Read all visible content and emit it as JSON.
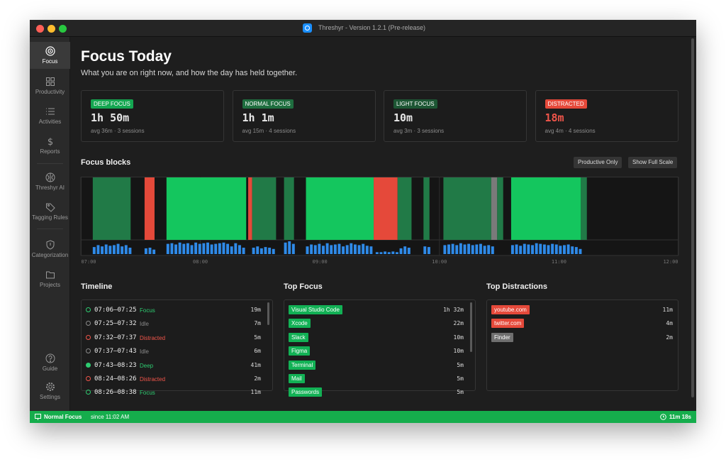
{
  "window": {
    "title": "Threshyr - Version 1.2.1 (Pre-release)"
  },
  "sidebar": {
    "items": [
      "Focus",
      "Productivity",
      "Activities",
      "Reports",
      "Threshyr AI",
      "Tagging Rules",
      "Categorization",
      "Projects"
    ],
    "footer": [
      "Guide",
      "Settings"
    ]
  },
  "header": {
    "title": "Focus Today",
    "subtitle": "What you are on right now, and how the day has held together."
  },
  "cards": [
    {
      "badge": "DEEP FOCUS",
      "value": "1h 50m",
      "detail": "avg 36m · 3 sessions",
      "color": "#14a651",
      "value_color": "#e8e8e8"
    },
    {
      "badge": "NORMAL FOCUS",
      "value": "1h 1m",
      "detail": "avg 15m · 4 sessions",
      "color": "#1f6e3f",
      "value_color": "#e8e8e8"
    },
    {
      "badge": "LIGHT FOCUS",
      "value": "10m",
      "detail": "avg 3m · 3 sessions",
      "color": "#1d5634",
      "value_color": "#e8e8e8"
    },
    {
      "badge": "DISTRACTED",
      "value": "18m",
      "detail": "avg 4m · 4 sessions",
      "color": "#e5493a",
      "value_color": "#f0554a"
    }
  ],
  "focus_blocks": {
    "title": "Focus blocks",
    "buttons": [
      "Productive Only",
      "Show Full Scale"
    ],
    "xlim": [
      420,
      720
    ],
    "xticks": [
      {
        "value": 420,
        "label": "07:00"
      },
      {
        "value": 480,
        "label": "08:00"
      },
      {
        "value": 540,
        "label": "09:00"
      },
      {
        "value": 600,
        "label": "10:00"
      },
      {
        "value": 660,
        "label": "11:00"
      },
      {
        "value": 720,
        "label": "12:00"
      }
    ],
    "blocks": [
      {
        "start": 426,
        "end": 445,
        "color": "#217a47"
      },
      {
        "start": 452,
        "end": 457,
        "color": "#e5493a"
      },
      {
        "start": 463,
        "end": 503,
        "color": "#14c65e"
      },
      {
        "start": 504,
        "end": 506,
        "color": "#e5493a"
      },
      {
        "start": 506,
        "end": 518,
        "color": "#217a47"
      },
      {
        "start": 522,
        "end": 527,
        "color": "#217a47"
      },
      {
        "start": 533,
        "end": 567,
        "color": "#14c65e"
      },
      {
        "start": 567,
        "end": 579,
        "color": "#e5493a"
      },
      {
        "start": 579,
        "end": 586,
        "color": "#217a47"
      },
      {
        "start": 592,
        "end": 595,
        "color": "#217a47"
      },
      {
        "start": 602,
        "end": 626,
        "color": "#217a47"
      },
      {
        "start": 626,
        "end": 629,
        "color": "#7a7a7a"
      },
      {
        "start": 629,
        "end": 632,
        "color": "#217a47"
      },
      {
        "start": 636,
        "end": 671,
        "color": "#14c65e"
      },
      {
        "start": 671,
        "end": 674,
        "color": "#217a47"
      }
    ],
    "activity": {
      "color": "#2f8ae8",
      "ylim": [
        0,
        1
      ],
      "x": [
        426,
        428,
        430,
        432,
        434,
        436,
        438,
        440,
        442,
        444,
        452,
        454,
        456,
        463,
        465,
        467,
        469,
        471,
        473,
        475,
        477,
        479,
        481,
        483,
        485,
        487,
        489,
        491,
        493,
        495,
        497,
        499,
        501,
        506,
        508,
        510,
        512,
        514,
        516,
        522,
        524,
        526,
        533,
        535,
        537,
        539,
        541,
        543,
        545,
        547,
        549,
        551,
        553,
        555,
        557,
        559,
        561,
        563,
        565,
        568,
        570,
        572,
        574,
        576,
        578,
        580,
        582,
        584,
        592,
        594,
        602,
        604,
        606,
        608,
        610,
        612,
        614,
        616,
        618,
        620,
        622,
        624,
        626,
        636,
        638,
        640,
        642,
        644,
        646,
        648,
        650,
        652,
        654,
        656,
        658,
        660,
        662,
        664,
        666,
        668,
        670
      ],
      "values": [
        0.55,
        0.7,
        0.6,
        0.75,
        0.65,
        0.7,
        0.8,
        0.6,
        0.7,
        0.5,
        0.45,
        0.5,
        0.35,
        0.8,
        0.85,
        0.75,
        0.9,
        0.8,
        0.85,
        0.7,
        0.9,
        0.8,
        0.85,
        0.9,
        0.75,
        0.8,
        0.85,
        0.9,
        0.8,
        0.6,
        0.85,
        0.7,
        0.5,
        0.5,
        0.6,
        0.45,
        0.55,
        0.5,
        0.4,
        0.9,
        1,
        0.8,
        0.6,
        0.75,
        0.7,
        0.8,
        0.65,
        0.85,
        0.7,
        0.75,
        0.8,
        0.6,
        0.7,
        0.85,
        0.75,
        0.7,
        0.8,
        0.65,
        0.6,
        0.15,
        0.15,
        0.2,
        0.15,
        0.2,
        0.15,
        0.45,
        0.6,
        0.5,
        0.6,
        0.55,
        0.7,
        0.75,
        0.8,
        0.7,
        0.85,
        0.75,
        0.8,
        0.7,
        0.75,
        0.8,
        0.65,
        0.7,
        0.6,
        0.7,
        0.75,
        0.65,
        0.8,
        0.75,
        0.7,
        0.85,
        0.8,
        0.75,
        0.7,
        0.8,
        0.75,
        0.65,
        0.7,
        0.75,
        0.6,
        0.55,
        0.4
      ]
    }
  },
  "timeline": {
    "title": "Timeline",
    "rows": [
      {
        "time": "07:06–07:25",
        "label": "Focus",
        "duration": "19m",
        "color": "#2ecc71",
        "dot": "ring"
      },
      {
        "time": "07:25–07:32",
        "label": "Idle",
        "duration": "7m",
        "color": "#8a8a8a",
        "dot": "ring"
      },
      {
        "time": "07:32–07:37",
        "label": "Distracted",
        "duration": "5m",
        "color": "#f0554a",
        "dot": "ring"
      },
      {
        "time": "07:37–07:43",
        "label": "Idle",
        "duration": "6m",
        "color": "#8a8a8a",
        "dot": "ring"
      },
      {
        "time": "07:43–08:23",
        "label": "Deep",
        "duration": "41m",
        "color": "#2ecc71",
        "dot": "filled"
      },
      {
        "time": "08:24–08:26",
        "label": "Distracted",
        "duration": "2m",
        "color": "#f0554a",
        "dot": "ring"
      },
      {
        "time": "08:26–08:38",
        "label": "Focus",
        "duration": "11m",
        "color": "#2ecc71",
        "dot": "ring"
      }
    ]
  },
  "top_focus": {
    "title": "Top Focus",
    "color": "#12b155",
    "rows": [
      {
        "name": "Visual Studio Code",
        "duration": "1h 32m"
      },
      {
        "name": "Xcode",
        "duration": "22m"
      },
      {
        "name": "Slack",
        "duration": "10m"
      },
      {
        "name": "Figma",
        "duration": "10m"
      },
      {
        "name": "Terminal",
        "duration": "5m"
      },
      {
        "name": "Mail",
        "duration": "5m"
      },
      {
        "name": "Passwords",
        "duration": "5m"
      }
    ]
  },
  "top_distractions": {
    "title": "Top Distractions",
    "rows": [
      {
        "name": "youtube.com",
        "duration": "11m",
        "color": "#e5493a"
      },
      {
        "name": "twitter.com",
        "duration": "4m",
        "color": "#e5493a"
      },
      {
        "name": "Finder",
        "duration": "2m",
        "color": "#6f6f6f"
      }
    ]
  },
  "status": {
    "state": "Normal Focus",
    "since": "since 11:02 AM",
    "elapsed": "11m 18s"
  }
}
